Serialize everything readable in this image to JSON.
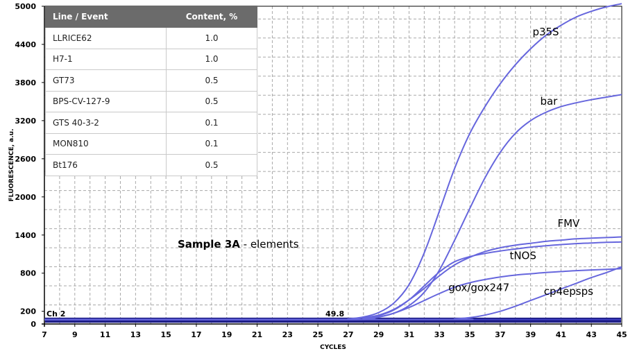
{
  "chart_data": {
    "type": "line",
    "xlabel": "CYCLES",
    "ylabel": "FLUORESCENCE, a.u.",
    "xlim": [
      7,
      45
    ],
    "ylim": [
      0,
      5000
    ],
    "x_ticks": [
      7,
      9,
      11,
      13,
      15,
      17,
      19,
      21,
      23,
      25,
      27,
      29,
      31,
      33,
      35,
      37,
      39,
      41,
      43,
      45
    ],
    "y_ticks": [
      0,
      200,
      800,
      1400,
      2000,
      2600,
      3200,
      3800,
      4400,
      5000
    ],
    "grid": true,
    "line_color": "#6666dd",
    "note_left": "Ch 2",
    "note_center": "49.8",
    "series": [
      {
        "name": "p35S",
        "x": [
          7,
          26,
          27,
          28,
          29,
          30,
          31,
          32,
          33,
          34,
          35,
          36,
          37,
          38,
          39,
          40,
          41,
          42,
          43,
          44,
          45
        ],
        "y": [
          70,
          70,
          80,
          110,
          180,
          330,
          620,
          1120,
          1780,
          2450,
          3000,
          3420,
          3780,
          4080,
          4330,
          4540,
          4700,
          4830,
          4920,
          4990,
          5040
        ]
      },
      {
        "name": "bar",
        "x": [
          7,
          27,
          28,
          29,
          30,
          31,
          32,
          33,
          34,
          35,
          36,
          37,
          38,
          39,
          40,
          41,
          42,
          43,
          44,
          45
        ],
        "y": [
          70,
          70,
          80,
          110,
          170,
          290,
          500,
          850,
          1320,
          1820,
          2300,
          2700,
          3000,
          3200,
          3330,
          3420,
          3480,
          3530,
          3570,
          3610
        ]
      },
      {
        "name": "FMV",
        "x": [
          7,
          26,
          27,
          28,
          29,
          30,
          31,
          32,
          33,
          34,
          35,
          36,
          37,
          38,
          39,
          40,
          41,
          42,
          43,
          44,
          45
        ],
        "y": [
          70,
          70,
          80,
          100,
          140,
          230,
          380,
          560,
          760,
          930,
          1050,
          1140,
          1200,
          1240,
          1270,
          1300,
          1320,
          1340,
          1350,
          1360,
          1370
        ]
      },
      {
        "name": "tNOS",
        "x": [
          7,
          27,
          28,
          29,
          30,
          31,
          32,
          33,
          34,
          35,
          36,
          37,
          38,
          39,
          40,
          41,
          42,
          43,
          44,
          45
        ],
        "y": [
          70,
          70,
          90,
          130,
          220,
          380,
          600,
          820,
          980,
          1060,
          1110,
          1150,
          1180,
          1210,
          1230,
          1250,
          1265,
          1275,
          1285,
          1290
        ]
      },
      {
        "name": "gox/gox247",
        "x": [
          7,
          27,
          28,
          29,
          30,
          31,
          32,
          33,
          34,
          35,
          36,
          37,
          38,
          39,
          40,
          41,
          42,
          43,
          44,
          45
        ],
        "y": [
          70,
          70,
          80,
          110,
          170,
          260,
          370,
          480,
          580,
          650,
          700,
          740,
          770,
          790,
          810,
          825,
          840,
          850,
          860,
          870
        ]
      },
      {
        "name": "cp4epsps",
        "x": [
          7,
          33,
          34,
          35,
          36,
          37,
          38,
          39,
          40,
          41,
          42,
          43,
          44,
          45
        ],
        "y": [
          70,
          70,
          80,
          100,
          140,
          200,
          280,
          370,
          460,
          550,
          640,
          730,
          810,
          900
        ]
      }
    ]
  },
  "table": {
    "headers": [
      "Line / Event",
      "Content, %"
    ],
    "rows": [
      [
        "LLRICE62",
        "1.0"
      ],
      [
        "H7-1",
        "1.0"
      ],
      [
        "GT73",
        "0.5"
      ],
      [
        "BPS-CV-127-9",
        "0.5"
      ],
      [
        "GTS 40-3-2",
        "0.1"
      ],
      [
        "MON810",
        "0.1"
      ],
      [
        "Bt176",
        "0.5"
      ]
    ]
  },
  "caption": {
    "bold": "Sample 3A",
    "rest": " - elements"
  }
}
